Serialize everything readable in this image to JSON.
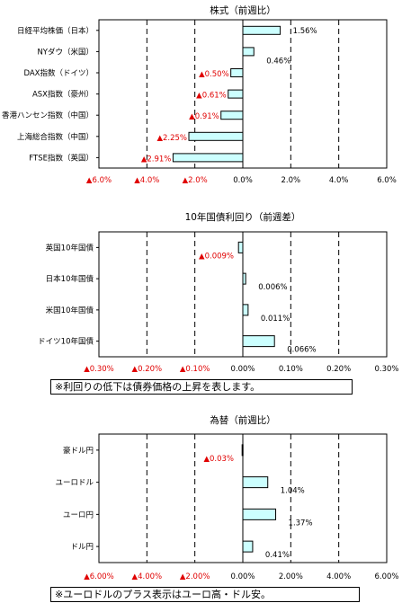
{
  "colors": {
    "bar_fill": "#ccffff",
    "bar_stroke": "#000000",
    "negative_text": "#e00000",
    "grid": "#000000"
  },
  "chart_data": [
    {
      "type": "bar",
      "orientation": "horizontal",
      "title": "株式（前週比）",
      "categories": [
        "日経平均株価（日本）",
        "NYダウ（米国）",
        "DAX指数（ドイツ）",
        "ASX指数（豪州）",
        "香港ハンセン指数（中国）",
        "上海総合指数（中国）",
        "FTSE指数（英国）"
      ],
      "values": [
        1.56,
        0.46,
        -0.5,
        -0.61,
        -0.91,
        -2.25,
        -2.91
      ],
      "value_labels": [
        "1.56%",
        "0.46%",
        "▲0.50%",
        "▲0.61%",
        "▲0.91%",
        "▲2.25%",
        "▲2.91%"
      ],
      "xlim": [
        -6,
        6
      ],
      "ticks": [
        -6,
        -4,
        -2,
        0,
        2,
        4,
        6
      ],
      "tick_labels": [
        "▲6.0%",
        "▲4.0%",
        "▲2.0%",
        "0.0%",
        "2.0%",
        "4.0%",
        "6.0%"
      ],
      "grid": true
    },
    {
      "type": "bar",
      "orientation": "horizontal",
      "title": "10年国債利回り（前週差）",
      "categories": [
        "英国10年国債",
        "日本10年国債",
        "米国10年国債",
        "ドイツ10年国債"
      ],
      "values": [
        -0.009,
        0.006,
        0.011,
        0.066
      ],
      "value_labels": [
        "▲0.009%",
        "0.006%",
        "0.011%",
        "0.066%"
      ],
      "xlim": [
        -0.3,
        0.3
      ],
      "ticks": [
        -0.3,
        -0.2,
        -0.1,
        0,
        0.1,
        0.2,
        0.3
      ],
      "tick_labels": [
        "▲0.30%",
        "▲0.20%",
        "▲0.10%",
        "0.00%",
        "0.10%",
        "0.20%",
        "0.30%"
      ],
      "grid": true,
      "note": "※利回りの低下は債券価格の上昇を表します。"
    },
    {
      "type": "bar",
      "orientation": "horizontal",
      "title": "為替（前週比）",
      "categories": [
        "豪ドル円",
        "ユーロドル",
        "ユーロ円",
        "ドル円"
      ],
      "values": [
        -0.03,
        1.04,
        1.37,
        0.41
      ],
      "value_labels": [
        "▲0.03%",
        "1.04%",
        "1.37%",
        "0.41%"
      ],
      "xlim": [
        -6,
        6
      ],
      "ticks": [
        -6,
        -4,
        -2,
        0,
        2,
        4,
        6
      ],
      "tick_labels": [
        "▲6.00%",
        "▲4.00%",
        "▲2.00%",
        "0.00%",
        "2.00%",
        "4.00%",
        "6.00%"
      ],
      "grid": true,
      "note": "※ユーロドルのプラス表示はユーロ高・ドル安。"
    }
  ]
}
